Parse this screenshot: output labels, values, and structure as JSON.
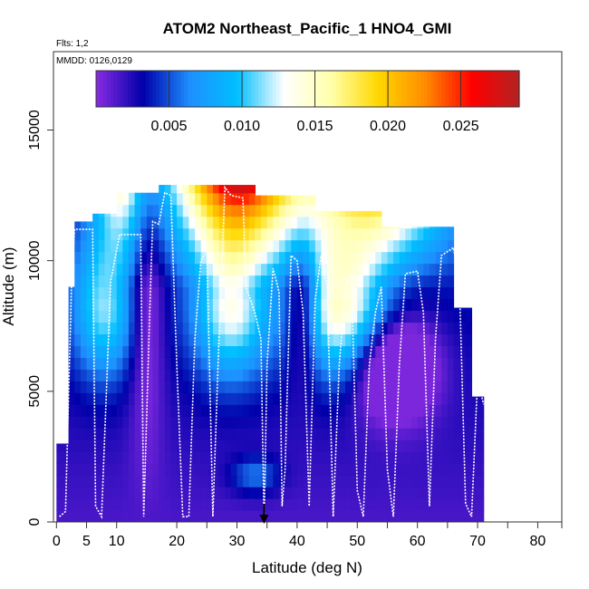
{
  "chart_data": {
    "type": "heatmap",
    "title": "ATOM2 Northeast_Pacific_1 HNO4_GMI",
    "flights_note": "Flts: 1,2",
    "dates_note": "MMDD: 0126,0129",
    "xlabel": "Latitude (deg N)",
    "ylabel": "Altitude (m)",
    "xlim": [
      -0.5,
      84
    ],
    "ylim": [
      0,
      18000
    ],
    "xticks": [
      0,
      5,
      10,
      20,
      30,
      40,
      50,
      60,
      70,
      80
    ],
    "xtick_labels": [
      "0",
      "5",
      "10",
      "20",
      "30",
      "40",
      "50",
      "60",
      "70",
      "80"
    ],
    "yticks": [
      0,
      5000,
      10000,
      15000
    ],
    "ytick_labels": [
      "0",
      "5000",
      "10000",
      "15000"
    ],
    "colorbar": {
      "range": [
        0,
        0.029
      ],
      "ticks": [
        0.005,
        0.01,
        0.015,
        0.02,
        0.025
      ],
      "tick_labels": [
        "0.005",
        "0.010",
        "0.015",
        "0.020",
        "0.025"
      ],
      "colors": [
        "#8a2be2",
        "#0000aa",
        "#1e90ff",
        "#00bfff",
        "#ffffff",
        "#ffffaa",
        "#ffd700",
        "#ff8c00",
        "#ff0000",
        "#b22222"
      ]
    },
    "marker_latitude": 34.5,
    "flight_track": [
      [
        0.5,
        200
      ],
      [
        1.5,
        400
      ],
      [
        2.5,
        9000
      ],
      [
        3,
        11200
      ],
      [
        6,
        11200
      ],
      [
        6.5,
        600
      ],
      [
        7.5,
        200
      ],
      [
        9,
        9200
      ],
      [
        10.5,
        11000
      ],
      [
        14,
        11000
      ],
      [
        14.5,
        200
      ],
      [
        15.5,
        8000
      ],
      [
        16,
        11500
      ],
      [
        17,
        11400
      ],
      [
        18,
        12600
      ],
      [
        19,
        12500
      ],
      [
        20,
        6000
      ],
      [
        21,
        200
      ],
      [
        22,
        200
      ],
      [
        23,
        7000
      ],
      [
        24,
        10000
      ],
      [
        25,
        10400
      ],
      [
        26,
        200
      ],
      [
        27,
        7000
      ],
      [
        28,
        12800
      ],
      [
        29,
        12500
      ],
      [
        31,
        12400
      ],
      [
        31.5,
        9000
      ],
      [
        33,
        8000
      ],
      [
        34,
        7000
      ],
      [
        34.5,
        0
      ],
      [
        35,
        6000
      ],
      [
        36,
        9700
      ],
      [
        37,
        8800
      ],
      [
        37.5,
        600
      ],
      [
        38,
        2000
      ],
      [
        39,
        10200
      ],
      [
        40,
        10000
      ],
      [
        41,
        8000
      ],
      [
        42,
        600
      ],
      [
        43,
        8500
      ],
      [
        44,
        10200
      ],
      [
        45,
        9000
      ],
      [
        46,
        200
      ],
      [
        47,
        6000
      ],
      [
        48,
        9000
      ],
      [
        49,
        9500
      ],
      [
        50,
        1200
      ],
      [
        51,
        200
      ],
      [
        52,
        6000
      ],
      [
        53,
        8000
      ],
      [
        54,
        9000
      ],
      [
        55,
        2000
      ],
      [
        56,
        200
      ],
      [
        57,
        6000
      ],
      [
        58,
        9500
      ],
      [
        60,
        9600
      ],
      [
        61,
        8000
      ],
      [
        62,
        600
      ],
      [
        63,
        7000
      ],
      [
        64,
        10200
      ],
      [
        66,
        10500
      ],
      [
        67,
        9000
      ],
      [
        68,
        700
      ],
      [
        69,
        200
      ],
      [
        70,
        5500
      ],
      [
        71,
        4500
      ]
    ]
  }
}
